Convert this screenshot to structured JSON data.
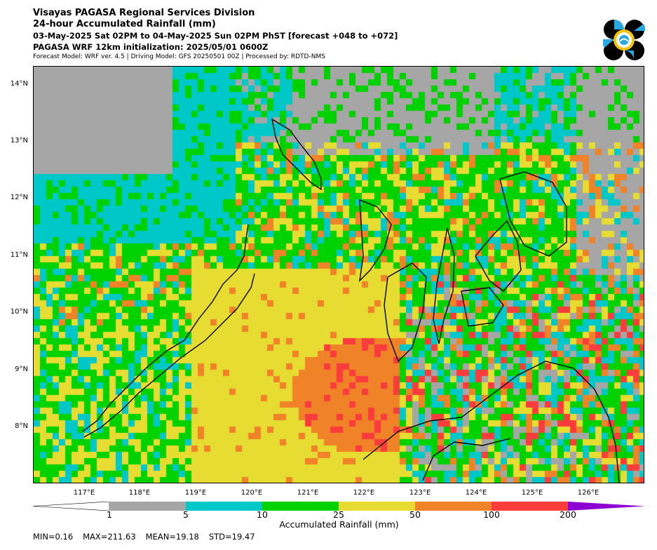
{
  "header": {
    "line1": "Visayas PAGASA Regional Services Division",
    "line2": "24-hour Accumulated Rainfall (mm)",
    "line3": "03-May-2025 Sat 02PM to 04-May-2025 Sun 02PM PhST [forecast +048 to +072]",
    "line4": "PAGASA WRF 12km initialization: 2025/05/01 0600Z",
    "line5": "Forecast Model: WRF ver. 4.5 | Driving Model: GFS 20250501 00Z | Processed by: RDTD-NMS"
  },
  "logo": {
    "icon": "pagasa-logo-icon"
  },
  "map": {
    "lat_labels": [
      "14°N",
      "13°N",
      "12°N",
      "11°N",
      "10°N",
      "9°N",
      "8°N"
    ],
    "lon_labels": [
      "117°E",
      "118°E",
      "119°E",
      "120°E",
      "121°E",
      "122°E",
      "123°E",
      "124°E",
      "125°E",
      "126°E"
    ],
    "extent": {
      "lon": [
        116.0,
        126.9
      ],
      "lat": [
        7.0,
        14.3
      ]
    }
  },
  "colorbar": {
    "ticks": [
      "1",
      "5",
      "10",
      "25",
      "50",
      "100",
      "200"
    ],
    "colors": [
      "#a6a6a6",
      "#00c8c8",
      "#00d200",
      "#e6dc32",
      "#f08228",
      "#fa3c3c",
      "#8c00d2"
    ],
    "label": "Accumulated Rainfall (mm)"
  },
  "stats": "MIN=0.16   MAX=211.63   MEAN=19.18   STD=19.47"
}
